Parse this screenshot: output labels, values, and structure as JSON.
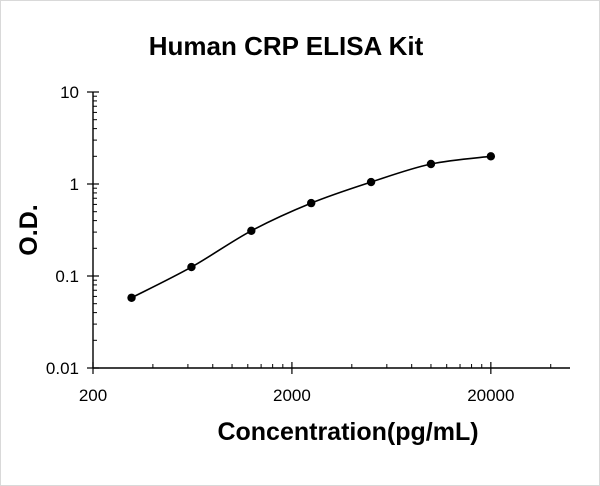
{
  "chart_data": {
    "type": "scatter",
    "title": "Human CRP ELISA Kit",
    "xlabel": "Concentration(pg/mL)",
    "ylabel": "O.D.",
    "x_scale": "log",
    "y_scale": "log",
    "xlim": [
      200,
      50000
    ],
    "ylim": [
      0.01,
      10
    ],
    "x_ticks": [
      {
        "value": 200,
        "label": "200"
      },
      {
        "value": 2000,
        "label": "2000"
      },
      {
        "value": 20000,
        "label": "20000"
      }
    ],
    "y_ticks": [
      {
        "value": 0.01,
        "label": "0.01"
      },
      {
        "value": 0.1,
        "label": "0.1"
      },
      {
        "value": 1,
        "label": "1"
      },
      {
        "value": 10,
        "label": "10"
      }
    ],
    "grid": false,
    "legend": "none",
    "series": [
      {
        "x": [
          312.5,
          625,
          1250,
          2500,
          5000,
          10000,
          20000
        ],
        "y": [
          0.058,
          0.125,
          0.31,
          0.62,
          1.05,
          1.65,
          2.0
        ],
        "marker": "circle",
        "line": "smooth"
      }
    ],
    "colors": {
      "series": "#000000",
      "axis": "#000000"
    }
  }
}
